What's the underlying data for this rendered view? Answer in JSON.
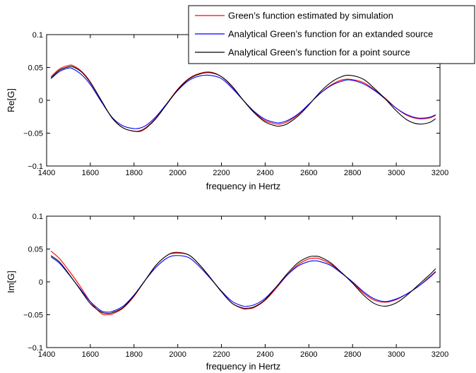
{
  "chart_data": [
    {
      "type": "line",
      "title": "",
      "xlabel": "frequency in Hertz",
      "ylabel": "Re[G]",
      "xlim": [
        1400,
        3200
      ],
      "ylim": [
        -0.1,
        0.1
      ],
      "xticks": [
        "1400",
        "1600",
        "1800",
        "2000",
        "2200",
        "2400",
        "2600",
        "2800",
        "3000",
        "3200"
      ],
      "yticks": [
        "-0.1",
        "-0.05",
        "0",
        "0.05",
        "0.1"
      ],
      "grid": false,
      "legend": "top-right",
      "series": [
        {
          "name": "Green’s function estimated by simulation",
          "color": "#ff0000",
          "x": [
            1420,
            1460,
            1500,
            1520,
            1560,
            1600,
            1650,
            1700,
            1750,
            1800,
            1830,
            1860,
            1900,
            1950,
            2000,
            2050,
            2100,
            2150,
            2200,
            2250,
            2300,
            2350,
            2400,
            2450,
            2470,
            2500,
            2550,
            2600,
            2650,
            2700,
            2750,
            2790,
            2850,
            2900,
            2950,
            3000,
            3050,
            3100,
            3150,
            3180
          ],
          "y": [
            0.036,
            0.048,
            0.053,
            0.053,
            0.044,
            0.028,
            0.0,
            -0.027,
            -0.042,
            -0.047,
            -0.046,
            -0.04,
            -0.027,
            -0.005,
            0.017,
            0.033,
            0.041,
            0.043,
            0.036,
            0.02,
            0.0,
            -0.018,
            -0.031,
            -0.036,
            -0.036,
            -0.033,
            -0.022,
            -0.006,
            0.01,
            0.023,
            0.031,
            0.032,
            0.027,
            0.016,
            0.003,
            -0.012,
            -0.023,
            -0.028,
            -0.027,
            -0.023
          ]
        },
        {
          "name": "Analytical Green’s function for an extanded source",
          "color": "#0000ff",
          "x": [
            1420,
            1460,
            1500,
            1520,
            1560,
            1600,
            1650,
            1700,
            1750,
            1800,
            1830,
            1860,
            1900,
            1950,
            2000,
            2050,
            2100,
            2150,
            2200,
            2250,
            2300,
            2350,
            2400,
            2450,
            2470,
            2500,
            2550,
            2600,
            2650,
            2700,
            2750,
            2790,
            2850,
            2900,
            2950,
            3000,
            3050,
            3100,
            3150,
            3180
          ],
          "y": [
            0.033,
            0.044,
            0.049,
            0.048,
            0.039,
            0.024,
            -0.002,
            -0.026,
            -0.039,
            -0.043,
            -0.042,
            -0.037,
            -0.025,
            -0.005,
            0.015,
            0.03,
            0.037,
            0.038,
            0.033,
            0.018,
            0.0,
            -0.017,
            -0.029,
            -0.034,
            -0.034,
            -0.031,
            -0.021,
            -0.006,
            0.01,
            0.022,
            0.029,
            0.031,
            0.025,
            0.015,
            0.002,
            -0.012,
            -0.022,
            -0.027,
            -0.026,
            -0.022
          ]
        },
        {
          "name": "Analytical Green’s function for a point source",
          "color": "#000000",
          "x": [
            1420,
            1460,
            1500,
            1520,
            1560,
            1600,
            1650,
            1700,
            1750,
            1800,
            1830,
            1860,
            1900,
            1950,
            2000,
            2050,
            2100,
            2150,
            2200,
            2250,
            2300,
            2350,
            2400,
            2450,
            2470,
            2500,
            2550,
            2600,
            2650,
            2700,
            2750,
            2790,
            2850,
            2900,
            2950,
            3000,
            3050,
            3100,
            3150,
            3180
          ],
          "y": [
            0.034,
            0.046,
            0.051,
            0.051,
            0.043,
            0.027,
            0.0,
            -0.027,
            -0.042,
            -0.047,
            -0.047,
            -0.041,
            -0.028,
            -0.006,
            0.016,
            0.032,
            0.04,
            0.042,
            0.036,
            0.021,
            0.0,
            -0.019,
            -0.033,
            -0.039,
            -0.039,
            -0.036,
            -0.024,
            -0.007,
            0.012,
            0.027,
            0.036,
            0.038,
            0.032,
            0.018,
            0.002,
            -0.016,
            -0.03,
            -0.036,
            -0.034,
            -0.028
          ]
        }
      ]
    },
    {
      "type": "line",
      "title": "",
      "xlabel": "frequency in Hertz",
      "ylabel": "Im[G]",
      "xlim": [
        1400,
        3200
      ],
      "ylim": [
        -0.1,
        0.1
      ],
      "xticks": [
        "1400",
        "1600",
        "1800",
        "2000",
        "2200",
        "2400",
        "2600",
        "2800",
        "3000",
        "3200"
      ],
      "yticks": [
        "-0.1",
        "-0.05",
        "0",
        "0.05",
        "0.1"
      ],
      "grid": false,
      "legend": "none",
      "series": [
        {
          "name": "Green’s function estimated by simulation",
          "color": "#ff0000",
          "x": [
            1420,
            1460,
            1500,
            1550,
            1600,
            1650,
            1680,
            1700,
            1750,
            1800,
            1850,
            1900,
            1950,
            1990,
            2050,
            2100,
            2150,
            2200,
            2250,
            2300,
            2320,
            2350,
            2400,
            2450,
            2500,
            2550,
            2600,
            2630,
            2650,
            2700,
            2750,
            2800,
            2850,
            2900,
            2950,
            3000,
            3050,
            3100,
            3150,
            3180
          ],
          "y": [
            0.047,
            0.035,
            0.018,
            -0.005,
            -0.03,
            -0.048,
            -0.05,
            -0.049,
            -0.04,
            -0.022,
            0.002,
            0.025,
            0.04,
            0.045,
            0.041,
            0.026,
            0.006,
            -0.015,
            -0.033,
            -0.041,
            -0.041,
            -0.039,
            -0.028,
            -0.01,
            0.01,
            0.026,
            0.035,
            0.036,
            0.035,
            0.027,
            0.014,
            -0.001,
            -0.017,
            -0.028,
            -0.031,
            -0.027,
            -0.018,
            -0.007,
            0.007,
            0.016
          ]
        },
        {
          "name": "Analytical Green’s function for an extanded source",
          "color": "#0000ff",
          "x": [
            1420,
            1460,
            1500,
            1550,
            1600,
            1650,
            1680,
            1700,
            1750,
            1800,
            1850,
            1900,
            1950,
            1990,
            2050,
            2100,
            2150,
            2200,
            2250,
            2300,
            2320,
            2350,
            2400,
            2450,
            2500,
            2550,
            2600,
            2630,
            2650,
            2700,
            2750,
            2800,
            2850,
            2900,
            2950,
            3000,
            3050,
            3100,
            3150,
            3180
          ],
          "y": [
            0.038,
            0.028,
            0.012,
            -0.009,
            -0.03,
            -0.044,
            -0.046,
            -0.045,
            -0.037,
            -0.02,
            0.002,
            0.022,
            0.036,
            0.04,
            0.037,
            0.023,
            0.005,
            -0.014,
            -0.03,
            -0.037,
            -0.037,
            -0.035,
            -0.025,
            -0.008,
            0.01,
            0.024,
            0.031,
            0.032,
            0.031,
            0.025,
            0.013,
            0.0,
            -0.015,
            -0.026,
            -0.03,
            -0.026,
            -0.018,
            -0.007,
            0.006,
            0.015
          ]
        },
        {
          "name": "Analytical Green’s function for a point source",
          "color": "#000000",
          "x": [
            1420,
            1460,
            1500,
            1550,
            1600,
            1650,
            1680,
            1700,
            1750,
            1800,
            1850,
            1900,
            1950,
            1990,
            2050,
            2100,
            2150,
            2200,
            2250,
            2300,
            2320,
            2350,
            2400,
            2450,
            2500,
            2550,
            2600,
            2630,
            2650,
            2700,
            2750,
            2800,
            2850,
            2900,
            2950,
            3000,
            3050,
            3100,
            3150,
            3180
          ],
          "y": [
            0.04,
            0.03,
            0.013,
            -0.01,
            -0.033,
            -0.046,
            -0.048,
            -0.047,
            -0.039,
            -0.021,
            0.002,
            0.025,
            0.04,
            0.044,
            0.041,
            0.026,
            0.006,
            -0.015,
            -0.033,
            -0.04,
            -0.04,
            -0.038,
            -0.027,
            -0.008,
            0.012,
            0.029,
            0.038,
            0.039,
            0.038,
            0.029,
            0.014,
            -0.002,
            -0.02,
            -0.033,
            -0.037,
            -0.032,
            -0.02,
            -0.005,
            0.01,
            0.02
          ]
        }
      ]
    }
  ]
}
